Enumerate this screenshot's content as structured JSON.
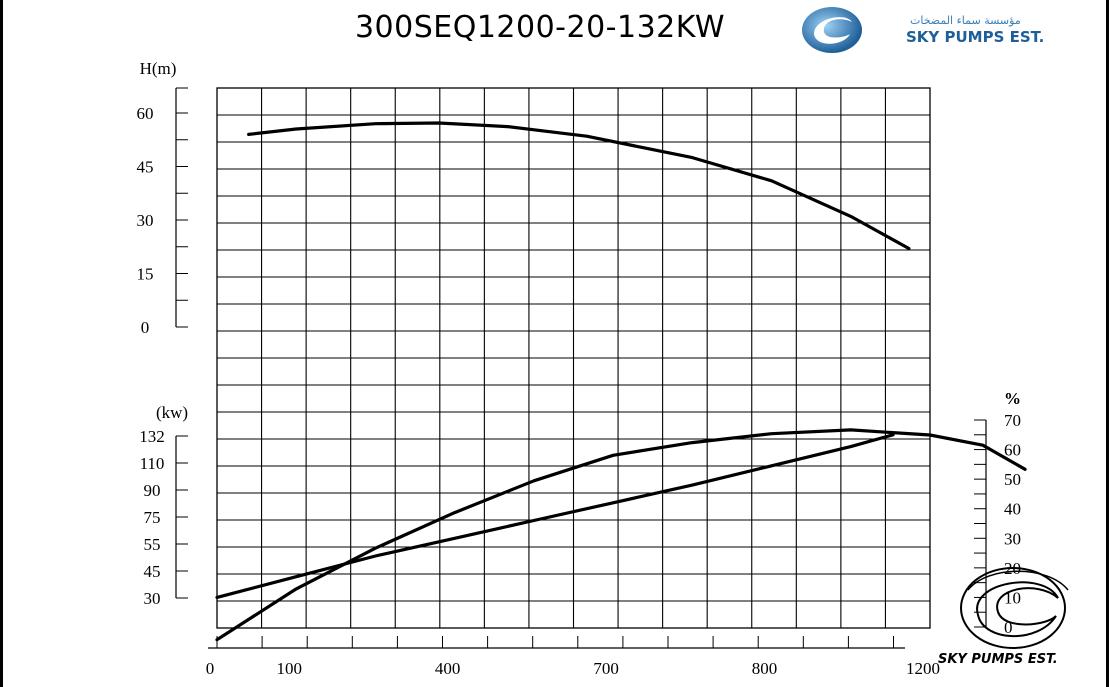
{
  "page": {
    "title": "300SEQ1200-20-132KW"
  },
  "brand": {
    "arabic_name": "مؤسسة سماء المضخات",
    "english_name": "SKY PUMPS EST.",
    "logo_icon": "sky-pumps-swirl-logo",
    "primary_color": "#1f5f99",
    "secondary_color": "#4ea3dc"
  },
  "chart_data": {
    "type": "line",
    "title": "300SEQ1200-20-132KW",
    "x": {
      "range": [
        0,
        1350
      ],
      "ticks": [
        {
          "label": "0",
          "value": 0
        },
        {
          "label": "100",
          "value": 150
        },
        {
          "label": "400",
          "value": 450
        },
        {
          "label": "700",
          "value": 750
        },
        {
          "label": "800",
          "value": 1050
        },
        {
          "label": "1200",
          "value": 1350
        }
      ]
    },
    "head_panel": {
      "ylabel": "H(m)",
      "ylim": [
        0,
        60
      ],
      "yticks": [
        "0",
        "15",
        "30",
        "45",
        "60"
      ],
      "series": [
        {
          "x": [
            60,
            150,
            300,
            420,
            550,
            700,
            900,
            1050,
            1200,
            1310
          ],
          "y": [
            54,
            55.5,
            57,
            57.2,
            56.2,
            53.5,
            47.5,
            41,
            31,
            22
          ]
        }
      ]
    },
    "power_panel": {
      "ylabel": "(kw)",
      "yticks": [
        "30",
        "45",
        "55",
        "75",
        "90",
        "110",
        "132"
      ],
      "series": [
        {
          "x": [
            0,
            150,
            300,
            450,
            600,
            750,
            900,
            1050,
            1200,
            1350,
            1450,
            1530
          ],
          "y": [
            -1,
            3,
            6.2,
            9,
            11.5,
            13.5,
            14.5,
            15.2,
            15.5,
            15.1,
            14.3,
            12.4
          ]
        }
      ]
    },
    "efficiency_panel": {
      "ylabel": "%",
      "ylim": [
        0,
        70
      ],
      "yticks": [
        "0",
        "10",
        "20",
        "30",
        "40",
        "50",
        "60",
        "70"
      ],
      "series": [
        {
          "x": [
            0,
            150,
            300,
            450,
            600,
            750,
            900,
            1050,
            1200,
            1280
          ],
          "y": [
            10,
            17,
            24,
            30,
            36,
            42,
            48,
            54.5,
            61,
            65
          ]
        }
      ]
    },
    "grid": true
  }
}
